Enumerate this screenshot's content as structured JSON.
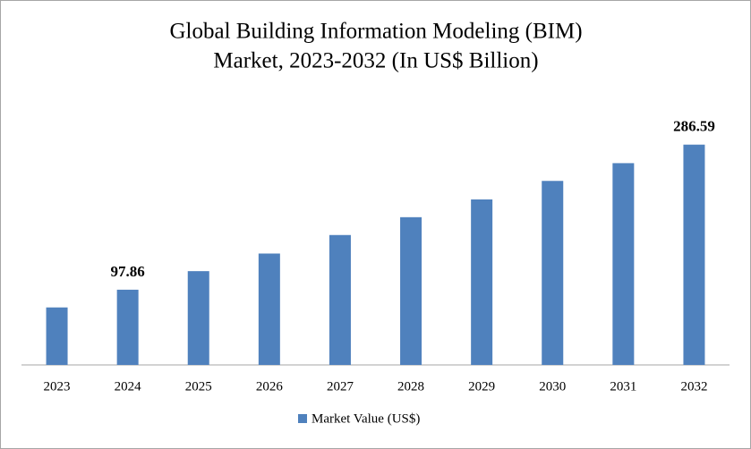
{
  "chart_data": {
    "type": "bar",
    "title": [
      "Global Building Information Modeling (BIM)",
      "Market, 2023-2032 (In US$ Billion)"
    ],
    "categories": [
      "2023",
      "2024",
      "2025",
      "2026",
      "2027",
      "2028",
      "2029",
      "2030",
      "2031",
      "2032"
    ],
    "series": [
      {
        "name": "Market Value (US$)",
        "color": "#4f81bd",
        "values": [
          74.8,
          97.86,
          122.0,
          144.9,
          169.0,
          192.2,
          215.3,
          239.4,
          262.5,
          286.59
        ],
        "value_labels": [
          null,
          "97.86",
          null,
          null,
          null,
          null,
          null,
          null,
          null,
          "286.59"
        ]
      }
    ],
    "ylim": [
      0,
      320
    ],
    "legend": "bottom"
  }
}
